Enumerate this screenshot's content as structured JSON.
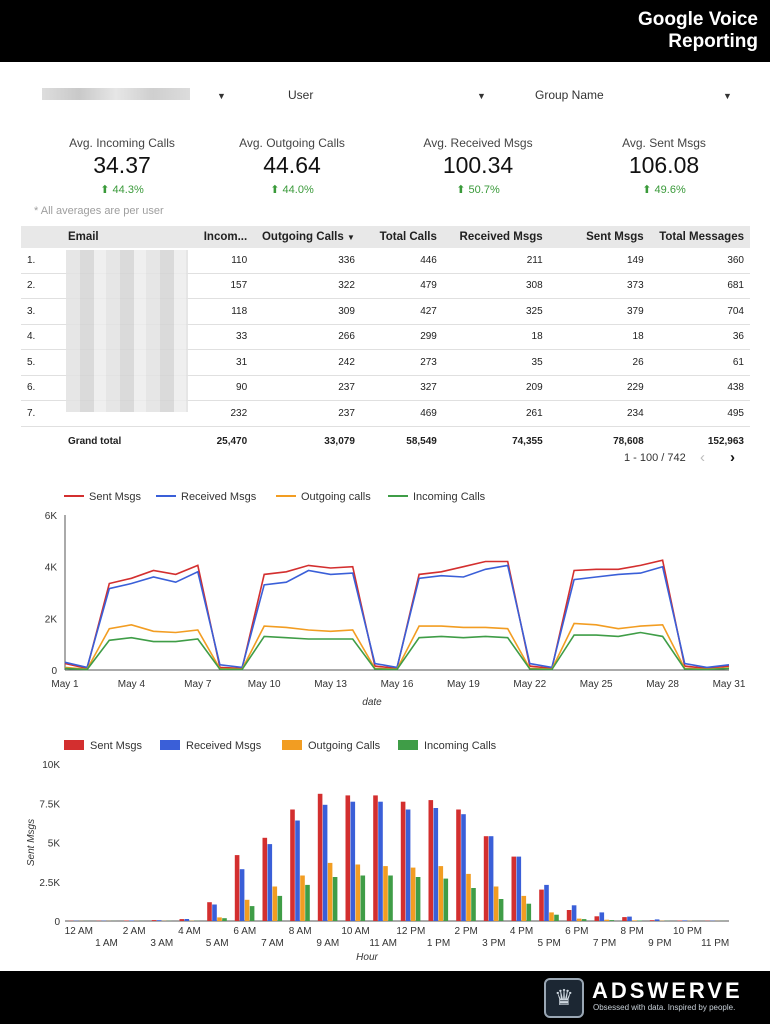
{
  "header": {
    "title_line1": "Google Voice",
    "title_line2": "Reporting"
  },
  "filters": {
    "first_value": "",
    "user_label": "User",
    "group_label": "Group Name"
  },
  "kpis": [
    {
      "label": "Avg. Incoming Calls",
      "value": "34.37",
      "delta": "44.3%"
    },
    {
      "label": "Avg. Outgoing Calls",
      "value": "44.64",
      "delta": "44.0%"
    },
    {
      "label": "Avg. Received Msgs",
      "value": "100.34",
      "delta": "50.7%"
    },
    {
      "label": "Avg. Sent Msgs",
      "value": "106.08",
      "delta": "49.6%"
    }
  ],
  "note": "* All averages are per user",
  "table": {
    "headers": [
      "Email",
      "Incom...",
      "Outgoing Calls",
      "Total Calls",
      "Received Msgs",
      "Sent Msgs",
      "Total Messages"
    ],
    "rows": [
      [
        "1.",
        "",
        "110",
        "336",
        "446",
        "211",
        "149",
        "360"
      ],
      [
        "2.",
        "",
        "157",
        "322",
        "479",
        "308",
        "373",
        "681"
      ],
      [
        "3.",
        "",
        "118",
        "309",
        "427",
        "325",
        "379",
        "704"
      ],
      [
        "4.",
        "",
        "33",
        "266",
        "299",
        "18",
        "18",
        "36"
      ],
      [
        "5.",
        "",
        "31",
        "242",
        "273",
        "35",
        "26",
        "61"
      ],
      [
        "6.",
        "",
        "90",
        "237",
        "327",
        "209",
        "229",
        "438"
      ],
      [
        "7.",
        "",
        "232",
        "237",
        "469",
        "261",
        "234",
        "495"
      ]
    ],
    "total": [
      "",
      "Grand total",
      "25,470",
      "33,079",
      "58,549",
      "74,355",
      "78,608",
      "152,963"
    ],
    "pagination": "1 - 100 / 742"
  },
  "colors": {
    "sent": "#d32f2f",
    "received": "#3a5fd8",
    "outgoing": "#f29d22",
    "incoming": "#3f9d47",
    "header_bg": "#000000",
    "delta": "#3a9a3a"
  },
  "footer": {
    "brand": "ADSWERVE",
    "tagline": "Obsessed with data. Inspired by people."
  },
  "chart_data": [
    {
      "type": "line",
      "xlabel": "date",
      "ylabel": "",
      "ylim": [
        0,
        6000
      ],
      "yticks": [
        "0",
        "2K",
        "4K",
        "6K"
      ],
      "x": [
        "May 1",
        "May 2",
        "May 3",
        "May 4",
        "May 5",
        "May 6",
        "May 7",
        "May 8",
        "May 9",
        "May 10",
        "May 11",
        "May 12",
        "May 13",
        "May 14",
        "May 15",
        "May 16",
        "May 17",
        "May 18",
        "May 19",
        "May 20",
        "May 21",
        "May 22",
        "May 23",
        "May 24",
        "May 25",
        "May 26",
        "May 27",
        "May 28",
        "May 29",
        "May 30",
        "May 31"
      ],
      "xticks": [
        "May 1",
        "May 4",
        "May 7",
        "May 10",
        "May 13",
        "May 16",
        "May 19",
        "May 22",
        "May 25",
        "May 28",
        "May 31"
      ],
      "series": [
        {
          "name": "Sent Msgs",
          "color": "#d32f2f",
          "values": [
            250,
            60,
            3350,
            3550,
            3850,
            3700,
            4050,
            100,
            60,
            3700,
            3800,
            4050,
            3950,
            4000,
            150,
            60,
            3700,
            3800,
            4000,
            4200,
            4200,
            150,
            60,
            3850,
            3900,
            3900,
            4050,
            4250,
            150,
            60,
            150
          ]
        },
        {
          "name": "Received Msgs",
          "color": "#3a5fd8",
          "values": [
            300,
            100,
            3150,
            3350,
            3600,
            3400,
            3800,
            200,
            100,
            3300,
            3400,
            3850,
            3700,
            3750,
            250,
            100,
            3550,
            3650,
            3600,
            3900,
            4050,
            250,
            100,
            3500,
            3600,
            3700,
            3750,
            4000,
            250,
            100,
            200
          ]
        },
        {
          "name": "Outgoing calls",
          "color": "#f29d22",
          "values": [
            100,
            30,
            1600,
            1750,
            1500,
            1450,
            1550,
            50,
            30,
            1700,
            1650,
            1550,
            1500,
            1550,
            60,
            30,
            1700,
            1700,
            1650,
            1650,
            1600,
            60,
            30,
            1800,
            1750,
            1600,
            1700,
            1750,
            60,
            30,
            80
          ]
        },
        {
          "name": "Incoming Calls",
          "color": "#3f9d47",
          "values": [
            60,
            20,
            1150,
            1250,
            1100,
            1100,
            1200,
            30,
            20,
            1300,
            1250,
            1200,
            1200,
            1200,
            40,
            20,
            1250,
            1300,
            1250,
            1300,
            1250,
            40,
            20,
            1350,
            1350,
            1300,
            1450,
            1300,
            40,
            20,
            60
          ]
        }
      ]
    },
    {
      "type": "bar",
      "xlabel": "Hour",
      "ylabel": "Sent Msgs",
      "ylim": [
        0,
        10000
      ],
      "yticks": [
        "0",
        "2.5K",
        "5K",
        "7.5K",
        "10K"
      ],
      "categories": [
        "12 AM",
        "1 AM",
        "2 AM",
        "3 AM",
        "4 AM",
        "5 AM",
        "6 AM",
        "7 AM",
        "8 AM",
        "9 AM",
        "10 AM",
        "11 AM",
        "12 PM",
        "1 PM",
        "2 PM",
        "3 PM",
        "4 PM",
        "5 PM",
        "6 PM",
        "7 PM",
        "8 PM",
        "9 PM",
        "10 PM",
        "11 PM"
      ],
      "series": [
        {
          "name": "Sent Msgs",
          "color": "#d32f2f",
          "values": [
            20,
            20,
            30,
            60,
            120,
            1200,
            4200,
            5300,
            7100,
            8100,
            8000,
            8000,
            7600,
            7700,
            7100,
            5400,
            4100,
            2000,
            700,
            300,
            250,
            50,
            30,
            20
          ]
        },
        {
          "name": "Received Msgs",
          "color": "#3a5fd8",
          "values": [
            20,
            20,
            30,
            50,
            130,
            1050,
            3300,
            4900,
            6400,
            7400,
            7600,
            7600,
            7100,
            7200,
            6800,
            5400,
            4100,
            2300,
            1000,
            550,
            280,
            100,
            40,
            20
          ]
        },
        {
          "name": "Outgoing Calls",
          "color": "#f29d22",
          "values": [
            5,
            5,
            5,
            10,
            20,
            230,
            1350,
            2200,
            2900,
            3700,
            3600,
            3500,
            3400,
            3500,
            3000,
            2200,
            1600,
            550,
            150,
            80,
            40,
            20,
            10,
            5
          ]
        },
        {
          "name": "Incoming Calls",
          "color": "#3f9d47",
          "values": [
            5,
            5,
            5,
            10,
            15,
            180,
            950,
            1600,
            2300,
            2800,
            2900,
            2900,
            2800,
            2700,
            2100,
            1400,
            1100,
            400,
            120,
            60,
            30,
            15,
            5,
            5
          ]
        }
      ]
    }
  ]
}
